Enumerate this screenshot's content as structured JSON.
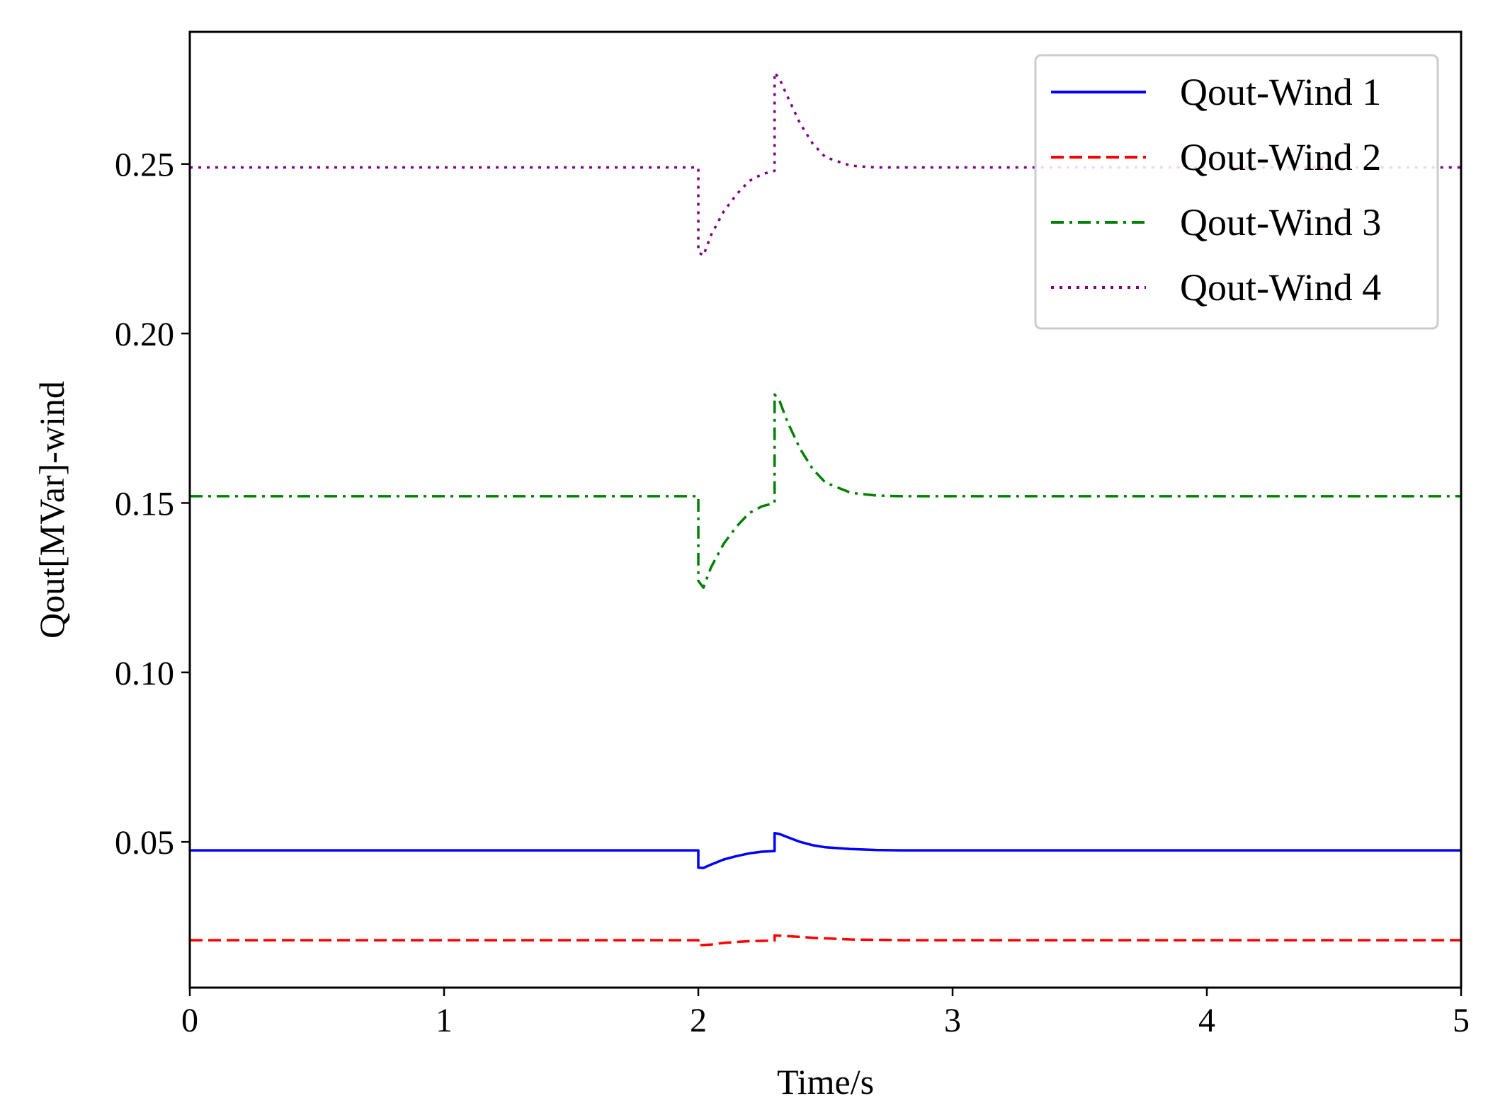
{
  "chart_data": {
    "type": "line",
    "title": "",
    "xlabel": "Time/s",
    "ylabel": "Qout[MVar]-wind",
    "xlim": [
      0,
      5
    ],
    "ylim": [
      0.007,
      0.289
    ],
    "grid": false,
    "legend_position": "top-right",
    "x_ticks": [
      "0",
      "1",
      "2",
      "3",
      "4",
      "5"
    ],
    "y_ticks": [
      "0.05",
      "0.10",
      "0.15",
      "0.20",
      "0.25"
    ],
    "x_tick_values": [
      0,
      1,
      2,
      3,
      4,
      5
    ],
    "y_tick_values": [
      0.05,
      0.1,
      0.15,
      0.2,
      0.25
    ],
    "series": [
      {
        "name": "Qout-Wind 1",
        "color": "#0000ff",
        "dash": "solid",
        "x": [
          0,
          2.0,
          2.0,
          2.02,
          2.05,
          2.1,
          2.15,
          2.2,
          2.25,
          2.3,
          2.3,
          2.32,
          2.35,
          2.4,
          2.45,
          2.5,
          2.6,
          2.7,
          2.8,
          5.0
        ],
        "values": [
          0.0475,
          0.0475,
          0.0424,
          0.0423,
          0.0433,
          0.0448,
          0.0458,
          0.0466,
          0.0471,
          0.0473,
          0.0526,
          0.0523,
          0.0514,
          0.05,
          0.049,
          0.0484,
          0.0479,
          0.0476,
          0.0475,
          0.0475
        ]
      },
      {
        "name": "Qout-Wind 2",
        "color": "#ff0000",
        "dash": "dashed",
        "x": [
          0,
          2.0,
          2.0,
          2.05,
          2.1,
          2.2,
          2.3,
          2.3,
          2.35,
          2.45,
          2.6,
          2.8,
          5.0
        ],
        "values": [
          0.021,
          0.021,
          0.0195,
          0.0197,
          0.0202,
          0.0207,
          0.0209,
          0.0224,
          0.0222,
          0.0217,
          0.0212,
          0.021,
          0.021
        ]
      },
      {
        "name": "Qout-Wind 3",
        "color": "#008000",
        "dash": "dashdot",
        "x": [
          0,
          2.0,
          2.0,
          2.02,
          2.05,
          2.1,
          2.15,
          2.2,
          2.25,
          2.3,
          2.3,
          2.32,
          2.35,
          2.4,
          2.45,
          2.5,
          2.6,
          2.7,
          2.8,
          5.0
        ],
        "values": [
          0.152,
          0.152,
          0.127,
          0.125,
          0.131,
          0.138,
          0.143,
          0.147,
          0.149,
          0.15,
          0.182,
          0.18,
          0.174,
          0.166,
          0.16,
          0.156,
          0.153,
          0.1522,
          0.152,
          0.152
        ]
      },
      {
        "name": "Qout-Wind 4",
        "color": "#800080",
        "dash": "dotted",
        "x": [
          0,
          2.0,
          2.0,
          2.02,
          2.05,
          2.1,
          2.15,
          2.2,
          2.25,
          2.3,
          2.3,
          2.32,
          2.35,
          2.4,
          2.45,
          2.5,
          2.6,
          2.7,
          2.8,
          5.0
        ],
        "values": [
          0.249,
          0.249,
          0.224,
          0.223,
          0.229,
          0.236,
          0.241,
          0.245,
          0.247,
          0.248,
          0.277,
          0.275,
          0.27,
          0.262,
          0.256,
          0.252,
          0.2495,
          0.249,
          0.249,
          0.249
        ]
      }
    ]
  }
}
